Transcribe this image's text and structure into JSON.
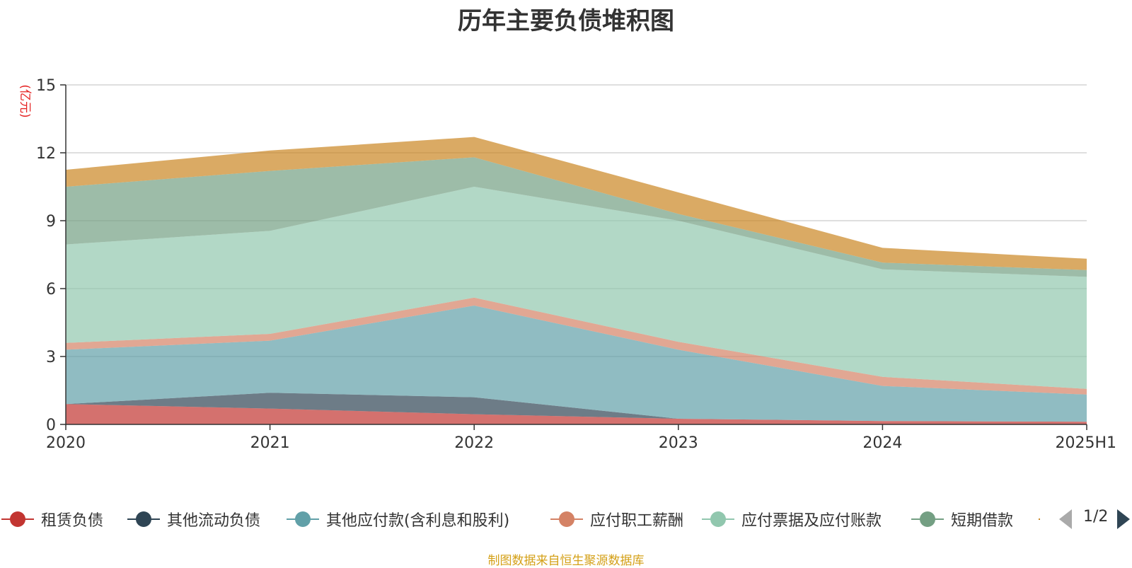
{
  "chart_data": {
    "type": "area",
    "stacked": true,
    "title": "历年主要负债堆积图",
    "ylabel": "(亿元)",
    "xlabel": "",
    "categories": [
      "2020",
      "2021",
      "2022",
      "2023",
      "2024",
      "2025H1"
    ],
    "ylim": [
      0,
      15
    ],
    "yticks": [
      "0",
      "3",
      "6",
      "9",
      "12",
      "15"
    ],
    "grid": true,
    "legend_position": "bottom",
    "series": [
      {
        "name": "租赁负债",
        "color": "#c23531",
        "values": [
          0.9,
          0.7,
          0.45,
          0.25,
          0.15,
          0.12
        ]
      },
      {
        "name": "其他流动负债",
        "color": "#2f4554",
        "values": [
          0.0,
          0.7,
          0.75,
          0.0,
          0.0,
          0.0
        ]
      },
      {
        "name": "其他应付款(含利息和股利)",
        "color": "#61a0a8",
        "values": [
          2.4,
          2.3,
          4.05,
          3.05,
          1.55,
          1.2
        ]
      },
      {
        "name": "应付职工薪酬",
        "color": "#d48265",
        "values": [
          0.3,
          0.3,
          0.35,
          0.35,
          0.4,
          0.25
        ]
      },
      {
        "name": "应付票据及应付账款",
        "color": "#91c7ae",
        "values": [
          4.35,
          4.55,
          4.9,
          5.35,
          4.75,
          4.95
        ]
      },
      {
        "name": "短期借款",
        "color": "#749f83",
        "values": [
          2.55,
          2.65,
          1.3,
          0.3,
          0.3,
          0.3
        ]
      },
      {
        "name": "",
        "color": "#ca8622",
        "values": [
          0.75,
          0.9,
          0.9,
          0.95,
          0.65,
          0.5
        ]
      }
    ]
  },
  "legend_pager": {
    "text": "1/2"
  },
  "source_note": "制图数据来自恒生聚源数据库"
}
